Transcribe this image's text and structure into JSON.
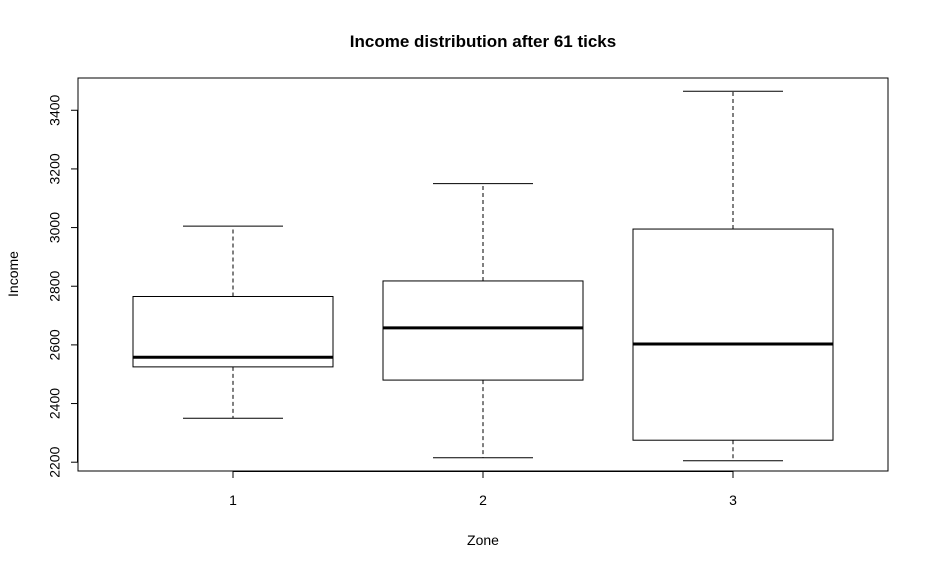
{
  "chart_data": {
    "type": "boxplot",
    "title": "Income distribution after 61 ticks",
    "xlabel": "Zone",
    "ylabel": "Income",
    "categories": [
      "1",
      "2",
      "3"
    ],
    "y_ticks": [
      2200,
      2400,
      2600,
      2800,
      3000,
      3200,
      3400
    ],
    "y_tick_labels": [
      "2200",
      "2400",
      "2600",
      "2800",
      "3000",
      "3200",
      "3400"
    ],
    "ylim": [
      2170,
      3510
    ],
    "boxes": [
      {
        "category": "1",
        "whisker_low": 2350,
        "q1": 2525,
        "median": 2558,
        "q3": 2765,
        "whisker_high": 3005
      },
      {
        "category": "2",
        "whisker_low": 2215,
        "q1": 2480,
        "median": 2658,
        "q3": 2818,
        "whisker_high": 3150
      },
      {
        "category": "3",
        "whisker_low": 2205,
        "q1": 2275,
        "median": 2603,
        "q3": 2995,
        "whisker_high": 3465
      }
    ],
    "grid": false,
    "legend": "none"
  }
}
